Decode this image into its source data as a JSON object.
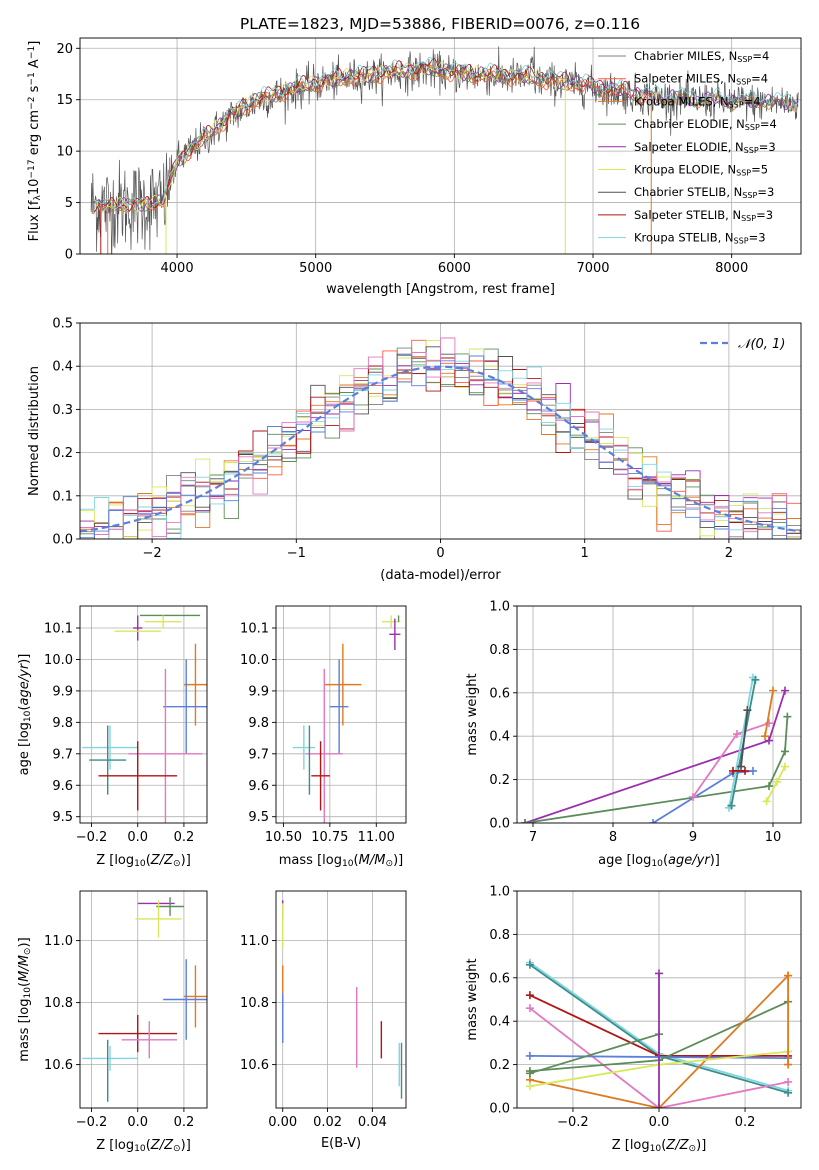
{
  "figure_title": "PLATE=1823, MJD=53886, FIBERID=0076, z=0.116",
  "models": [
    {
      "name": "Chabrier MILES",
      "nssp": "4",
      "color": "#808080"
    },
    {
      "name": "Salpeter MILES",
      "nssp": "4",
      "color": "#ff5a3c"
    },
    {
      "name": "Kroupa MILES",
      "nssp": "4",
      "color": "#e07a1f"
    },
    {
      "name": "Chabrier ELODIE",
      "nssp": "4",
      "color": "#5b8c5a"
    },
    {
      "name": "Salpeter ELODIE",
      "nssp": "3",
      "color": "#9b2fae"
    },
    {
      "name": "Kroupa ELODIE",
      "nssp": "5",
      "color": "#d8e85a"
    },
    {
      "name": "Chabrier STELIB",
      "nssp": "3",
      "color": "#505050"
    },
    {
      "name": "Salpeter STELIB",
      "nssp": "3",
      "color": "#b01515"
    },
    {
      "name": "Kroupa STELIB",
      "nssp": "3",
      "color": "#7fd6df"
    }
  ],
  "extra_colors": {
    "pink": "#e377c2",
    "blue": "#5b7fdd",
    "teal": "#3c8c8c"
  },
  "chart_data": [
    {
      "id": "spectrum",
      "type": "line",
      "xlabel_main": "wavelength [Angstrom, rest frame]",
      "ylabel_main": "Flux [f",
      "ylabel_sub": "λ",
      "ylabel_rest": "10",
      "ylabel_exp": "−17",
      "ylabel_unit": " erg cm",
      "ylabel_exp2": "−2",
      "ylabel_unit2": " s",
      "ylabel_exp3": "−1",
      "ylabel_unit3": " A",
      "ylabel_exp4": "−1",
      "ylabel_end": "]",
      "xlim": [
        3300,
        8500
      ],
      "ylim": [
        0,
        21
      ],
      "xticks": [
        4000,
        5000,
        6000,
        7000,
        8000
      ],
      "yticks": [
        0,
        5,
        10,
        15,
        20
      ],
      "continuum": [
        [
          3380,
          4.8
        ],
        [
          3500,
          4.6
        ],
        [
          3700,
          4.8
        ],
        [
          3900,
          5.0
        ],
        [
          4000,
          9.0
        ],
        [
          4200,
          11.2
        ],
        [
          4400,
          13.5
        ],
        [
          4600,
          15.0
        ],
        [
          4800,
          15.8
        ],
        [
          5000,
          16.5
        ],
        [
          5200,
          17.0
        ],
        [
          5400,
          17.3
        ],
        [
          5600,
          17.6
        ],
        [
          5800,
          17.9
        ],
        [
          6000,
          17.5
        ],
        [
          6200,
          17.3
        ],
        [
          6400,
          17.2
        ],
        [
          6600,
          16.9
        ],
        [
          6800,
          16.6
        ],
        [
          7000,
          16.2
        ],
        [
          7200,
          15.7
        ],
        [
          7450,
          15.2
        ],
        [
          7700,
          15.0
        ],
        [
          8000,
          14.8
        ],
        [
          8500,
          14.6
        ]
      ],
      "legend_position": "upper-right"
    },
    {
      "id": "residuals",
      "type": "histogram",
      "xlabel": "(data-model)/error",
      "ylabel": "Normed distribution",
      "xlim": [
        -2.5,
        2.5
      ],
      "ylim": [
        0,
        0.5
      ],
      "xticks": [
        -2,
        -1,
        0,
        1,
        2
      ],
      "xtick_labels": [
        "−2",
        "−1",
        "0",
        "1",
        "2"
      ],
      "yticks": [
        0,
        0.1,
        0.2,
        0.3,
        0.4,
        0.5
      ],
      "ytick_labels": [
        "0.0",
        "0.1",
        "0.2",
        "0.3",
        "0.4",
        "0.5"
      ],
      "bin_width": 0.1,
      "normal_curve": {
        "mean": 0,
        "sigma": 1,
        "label": "𝒩(0, 1)"
      },
      "legend_position": "upper-right"
    },
    {
      "id": "age_vs_Z",
      "type": "errorbar",
      "xlabel": "Z [log",
      "xlabel_sub": "10",
      "xlabel_rest": "(Z/Z",
      "xlabel_sub2": "⊙",
      "xlabel_end": ")]",
      "ylabel": "age  [log",
      "ylabel_sub": "10",
      "ylabel_rest": "(age/yr)]",
      "xlim": [
        -0.25,
        0.3
      ],
      "ylim": [
        9.48,
        10.17
      ],
      "xticks": [
        -0.2,
        0.0,
        0.2
      ],
      "xtick_labels": [
        "−0.2",
        "0.0",
        "0.2"
      ],
      "yticks": [
        9.5,
        9.6,
        9.7,
        9.8,
        9.9,
        10.0,
        10.1
      ],
      "ytick_labels": [
        "9.5",
        "9.6",
        "9.7",
        "9.8",
        "9.9",
        "10.0",
        "10.1"
      ],
      "points": [
        {
          "x": 0.14,
          "y": 10.14,
          "xerr": 0.13,
          "yerr": 0.0,
          "color": "#5b8c5a"
        },
        {
          "x": 0.11,
          "y": 10.12,
          "xerr": 0.08,
          "yerr": 0.02,
          "color": "#d8e85a"
        },
        {
          "x": 0.0,
          "y": 10.1,
          "xerr": 0.02,
          "yerr": 0.04,
          "color": "#9b2fae"
        },
        {
          "x": 0.0,
          "y": 10.09,
          "xerr": 0.1,
          "yerr": 0.0,
          "color": "#d8e85a"
        },
        {
          "x": 0.25,
          "y": 9.92,
          "xerr": 0.05,
          "yerr": 0.13,
          "color": "#e07a1f"
        },
        {
          "x": 0.21,
          "y": 9.85,
          "xerr": 0.1,
          "yerr": 0.15,
          "color": "#5b7fdd"
        },
        {
          "x": 0.12,
          "y": 9.7,
          "xerr": 0.16,
          "yerr": 0.27,
          "color": "#e377c2"
        },
        {
          "x": -0.12,
          "y": 9.72,
          "xerr": 0.12,
          "yerr": 0.07,
          "color": "#7fd6df"
        },
        {
          "x": -0.13,
          "y": 9.68,
          "xerr": 0.08,
          "yerr": 0.11,
          "color": "#3c8c8c"
        },
        {
          "x": 0.0,
          "y": 9.63,
          "xerr": 0.17,
          "yerr": 0.11,
          "color": "#b01515"
        }
      ]
    },
    {
      "id": "age_vs_mass",
      "type": "errorbar",
      "xlabel": "mass [log",
      "xlabel_sub": "10",
      "xlabel_rest": "(M/M",
      "xlabel_sub2": "⊙",
      "xlabel_end": ")]",
      "xlim": [
        10.46,
        11.16
      ],
      "ylim": [
        9.48,
        10.17
      ],
      "xticks": [
        10.5,
        10.75,
        11.0
      ],
      "xtick_labels": [
        "10.50",
        "10.75",
        "11.00"
      ],
      "yticks": [
        9.5,
        9.6,
        9.7,
        9.8,
        9.9,
        10.0,
        10.1
      ],
      "ytick_labels": [
        "9.5",
        "9.6",
        "9.7",
        "9.8",
        "9.9",
        "10.0",
        "10.1"
      ],
      "points": [
        {
          "x": 11.08,
          "y": 10.12,
          "xerr": 0.05,
          "yerr": 0.02,
          "color": "#d8e85a"
        },
        {
          "x": 11.1,
          "y": 10.08,
          "xerr": 0.03,
          "yerr": 0.05,
          "color": "#9b2fae"
        },
        {
          "x": 11.12,
          "y": 10.13,
          "xerr": 0.0,
          "yerr": 0.01,
          "color": "#5b8c5a"
        },
        {
          "x": 10.82,
          "y": 9.92,
          "xerr": 0.1,
          "yerr": 0.13,
          "color": "#e07a1f"
        },
        {
          "x": 10.8,
          "y": 9.85,
          "xerr": 0.05,
          "yerr": 0.15,
          "color": "#5b7fdd"
        },
        {
          "x": 10.72,
          "y": 9.7,
          "xerr": 0.1,
          "yerr": 0.27,
          "color": "#e377c2"
        },
        {
          "x": 10.61,
          "y": 9.72,
          "xerr": 0.06,
          "yerr": 0.07,
          "color": "#7fd6df"
        },
        {
          "x": 10.64,
          "y": 9.68,
          "xerr": 0.0,
          "yerr": 0.11,
          "color": "#3c8c8c"
        },
        {
          "x": 10.7,
          "y": 9.63,
          "xerr": 0.05,
          "yerr": 0.11,
          "color": "#b01515"
        }
      ]
    },
    {
      "id": "massweight_vs_age",
      "type": "line",
      "ylabel": "mass weight",
      "xlabel": "age  [log",
      "xlabel_sub": "10",
      "xlabel_rest": "(age/yr)]",
      "xlim": [
        6.8,
        10.35
      ],
      "ylim": [
        0,
        1.0
      ],
      "xticks": [
        7,
        8,
        9,
        10
      ],
      "xtick_labels": [
        "7",
        "8",
        "9",
        "10"
      ],
      "yticks": [
        0,
        0.2,
        0.4,
        0.6,
        0.8,
        1.0
      ],
      "ytick_labels": [
        "0.0",
        "0.2",
        "0.4",
        "0.6",
        "0.8",
        "1.0"
      ],
      "series": [
        {
          "color": "#9b2fae",
          "x": [
            6.9,
            9.95,
            10.15
          ],
          "y": [
            0.0,
            0.38,
            0.61
          ]
        },
        {
          "color": "#5b8c5a",
          "x": [
            6.9,
            9.95,
            10.15,
            10.18
          ],
          "y": [
            0.0,
            0.17,
            0.33,
            0.49
          ]
        },
        {
          "color": "#5b7fdd",
          "x": [
            8.5,
            9.5,
            9.75
          ],
          "y": [
            0.0,
            0.23,
            0.24
          ]
        },
        {
          "color": "#e377c2",
          "x": [
            9.0,
            9.55,
            9.95
          ],
          "y": [
            0.12,
            0.41,
            0.46
          ]
        },
        {
          "color": "#e07a1f",
          "x": [
            9.9,
            10.0
          ],
          "y": [
            0.4,
            0.61
          ]
        },
        {
          "color": "#7fd6df",
          "x": [
            9.45,
            9.75
          ],
          "y": [
            0.07,
            0.67
          ]
        },
        {
          "color": "#3c8c8c",
          "x": [
            9.48,
            9.78
          ],
          "y": [
            0.08,
            0.66
          ]
        },
        {
          "color": "#b01515",
          "x": [
            9.5,
            9.65
          ],
          "y": [
            0.24,
            0.24
          ]
        },
        {
          "color": "#d8e85a",
          "x": [
            9.92,
            10.05,
            10.15
          ],
          "y": [
            0.1,
            0.19,
            0.26
          ]
        },
        {
          "color": "#505050",
          "x": [
            9.6,
            9.68
          ],
          "y": [
            0.26,
            0.52
          ]
        }
      ]
    },
    {
      "id": "mass_vs_Z",
      "type": "errorbar",
      "xlabel": "Z [log",
      "xlabel_sub": "10",
      "xlabel_rest": "(Z/Z",
      "xlabel_sub2": "⊙",
      "xlabel_end": ")]",
      "ylabel": "mass [log",
      "ylabel_sub": "10",
      "ylabel_rest": "(M/M",
      "ylabel_sub2": "⊙",
      "ylabel_end": ")]",
      "xlim": [
        -0.25,
        0.3
      ],
      "ylim": [
        10.46,
        11.16
      ],
      "xticks": [
        -0.2,
        0.0,
        0.2
      ],
      "xtick_labels": [
        "−0.2",
        "0.0",
        "0.2"
      ],
      "yticks": [
        10.6,
        10.8,
        11.0
      ],
      "ytick_labels": [
        "10.6",
        "10.8",
        "11.0"
      ],
      "points": [
        {
          "x": 0.08,
          "y": 11.12,
          "xerr": 0.08,
          "yerr": 0.0,
          "color": "#9b2fae"
        },
        {
          "x": 0.14,
          "y": 11.11,
          "xerr": 0.06,
          "yerr": 0.03,
          "color": "#5b8c5a"
        },
        {
          "x": 0.09,
          "y": 11.07,
          "xerr": 0.1,
          "yerr": 0.06,
          "color": "#d8e85a"
        },
        {
          "x": 0.25,
          "y": 10.82,
          "xerr": 0.05,
          "yerr": 0.1,
          "color": "#e07a1f"
        },
        {
          "x": 0.21,
          "y": 10.81,
          "xerr": 0.1,
          "yerr": 0.13,
          "color": "#5b7fdd"
        },
        {
          "x": 0.0,
          "y": 10.7,
          "xerr": 0.17,
          "yerr": 0.06,
          "color": "#b01515"
        },
        {
          "x": 0.05,
          "y": 10.68,
          "xerr": 0.12,
          "yerr": 0.06,
          "color": "#e377c2"
        },
        {
          "x": -0.12,
          "y": 10.62,
          "xerr": 0.12,
          "yerr": 0.04,
          "color": "#7fd6df"
        },
        {
          "x": -0.13,
          "y": 10.58,
          "xerr": 0.0,
          "yerr": 0.1,
          "color": "#3c8c8c"
        }
      ]
    },
    {
      "id": "mass_vs_EBV",
      "type": "errorbar",
      "xlabel": "E(B-V)",
      "xlim": [
        -0.003,
        0.055
      ],
      "ylim": [
        10.46,
        11.16
      ],
      "xticks": [
        0.0,
        0.02,
        0.04
      ],
      "xtick_labels": [
        "0.00",
        "0.02",
        "0.04"
      ],
      "yticks": [
        10.6,
        10.8,
        11.0
      ],
      "ytick_labels": [
        "10.6",
        "10.8",
        "11.0"
      ],
      "points": [
        {
          "x": 0.0,
          "y": 11.1,
          "xerr": 0.0,
          "yerr": 0.03,
          "color": "#9b2fae"
        },
        {
          "x": 0.0,
          "y": 11.05,
          "xerr": 0.0,
          "yerr": 0.07,
          "color": "#d8e85a"
        },
        {
          "x": 0.0,
          "y": 10.81,
          "xerr": 0.0,
          "yerr": 0.11,
          "color": "#e07a1f"
        },
        {
          "x": 0.0,
          "y": 10.75,
          "xerr": 0.0,
          "yerr": 0.08,
          "color": "#5b7fdd"
        },
        {
          "x": 0.033,
          "y": 10.72,
          "xerr": 0.0,
          "yerr": 0.13,
          "color": "#e377c2"
        },
        {
          "x": 0.044,
          "y": 10.68,
          "xerr": 0.0,
          "yerr": 0.06,
          "color": "#b01515"
        },
        {
          "x": 0.052,
          "y": 10.6,
          "xerr": 0.0,
          "yerr": 0.07,
          "color": "#7fd6df"
        },
        {
          "x": 0.053,
          "y": 10.58,
          "xerr": 0.0,
          "yerr": 0.09,
          "color": "#3c8c8c"
        }
      ]
    },
    {
      "id": "massweight_vs_Z",
      "type": "line",
      "ylabel": "mass weight",
      "xlabel": "Z [log",
      "xlabel_sub": "10",
      "xlabel_rest": "(Z/Z",
      "xlabel_sub2": "⊙",
      "xlabel_end": ")]",
      "xlim": [
        -0.33,
        0.33
      ],
      "ylim": [
        0,
        1.0
      ],
      "xticks": [
        -0.2,
        0.0,
        0.2
      ],
      "xtick_labels": [
        "−0.2",
        "0.0",
        "0.2"
      ],
      "yticks": [
        0,
        0.2,
        0.4,
        0.6,
        0.8,
        1.0
      ],
      "ytick_labels": [
        "0.0",
        "0.2",
        "0.4",
        "0.6",
        "0.8",
        "1.0"
      ],
      "series": [
        {
          "color": "#7fd6df",
          "x": [
            -0.3,
            0.0,
            0.3
          ],
          "y": [
            0.67,
            0.25,
            0.08
          ]
        },
        {
          "color": "#3c8c8c",
          "x": [
            -0.3,
            0.0,
            0.3
          ],
          "y": [
            0.66,
            0.24,
            0.07
          ]
        },
        {
          "color": "#b01515",
          "x": [
            -0.3,
            0.0,
            0.3
          ],
          "y": [
            0.52,
            0.24,
            0.24
          ]
        },
        {
          "color": "#e377c2",
          "x": [
            -0.3,
            0.0,
            0.3
          ],
          "y": [
            0.46,
            0.0,
            0.12
          ]
        },
        {
          "color": "#5b7fdd",
          "x": [
            -0.3,
            0.0,
            0.3
          ],
          "y": [
            0.24,
            0.235,
            0.23
          ]
        },
        {
          "color": "#5b8c5a",
          "x": [
            -0.3,
            0.0,
            0.3
          ],
          "y": [
            0.17,
            0.22,
            0.49
          ]
        },
        {
          "color": "#e07a1f",
          "x": [
            -0.3,
            0.0,
            0.3
          ],
          "y": [
            0.13,
            0.0,
            0.61
          ]
        },
        {
          "color": "#5b8c5a",
          "x": [
            -0.3,
            0.0
          ],
          "y": [
            0.16,
            0.34
          ]
        },
        {
          "color": "#d8e85a",
          "x": [
            -0.3,
            0.0,
            0.3
          ],
          "y": [
            0.1,
            0.2,
            0.26
          ]
        },
        {
          "color": "#9b2fae",
          "x": [
            0.0,
            0.0
          ],
          "y": [
            0.0,
            0.62
          ]
        },
        {
          "color": "#e07a1f",
          "x": [
            0.3,
            0.3
          ],
          "y": [
            0.2,
            0.61
          ]
        }
      ]
    }
  ]
}
